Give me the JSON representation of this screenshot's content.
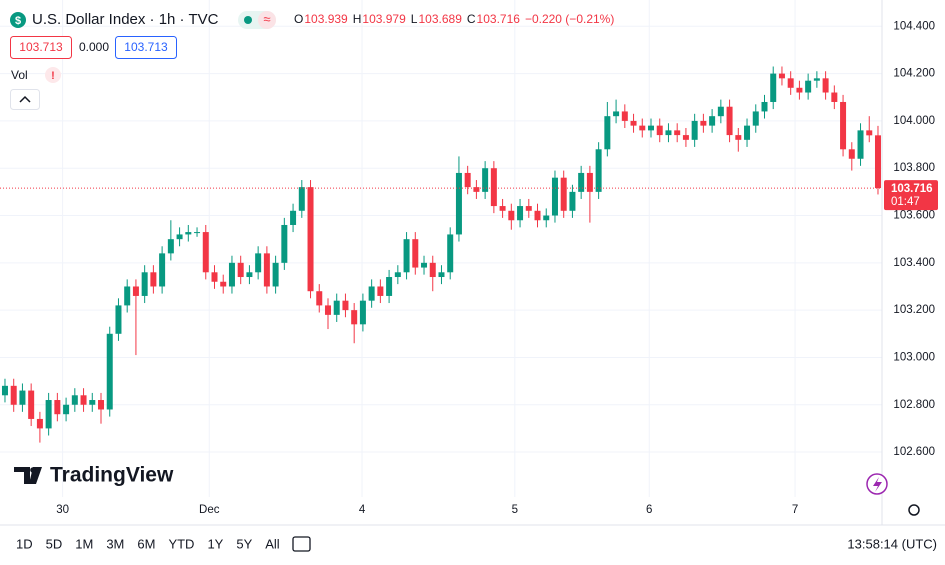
{
  "header": {
    "symbol": "U.S. Dollar Index · 1h · TVC",
    "ohlc_labels": [
      "O",
      "H",
      "L",
      "C"
    ],
    "change": "−0.220 (−0.21%)",
    "bid": "103.713",
    "spread": "0.000",
    "ask": "103.713",
    "volume_label": "Vol",
    "countdown": "01:47"
  },
  "chart_data": {
    "type": "candlestick",
    "up_color": "#089981",
    "down_color": "#f23645",
    "open": [
      102.84,
      102.88,
      102.8,
      102.86,
      102.74,
      102.7,
      102.82,
      102.76,
      102.8,
      102.84,
      102.8,
      102.82,
      102.78,
      103.1,
      103.22,
      103.3,
      103.26,
      103.36,
      103.3,
      103.44,
      103.5,
      103.52,
      103.53,
      103.53,
      103.36,
      103.32,
      103.3,
      103.4,
      103.34,
      103.36,
      103.44,
      103.3,
      103.4,
      103.56,
      103.62,
      103.72,
      103.28,
      103.22,
      103.18,
      103.24,
      103.2,
      103.14,
      103.24,
      103.3,
      103.26,
      103.34,
      103.36,
      103.5,
      103.38,
      103.4,
      103.34,
      103.36,
      103.52,
      103.78,
      103.72,
      103.7,
      103.8,
      103.64,
      103.62,
      103.58,
      103.64,
      103.62,
      103.58,
      103.6,
      103.76,
      103.62,
      103.7,
      103.78,
      103.7,
      103.88,
      104.02,
      104.04,
      104.0,
      103.98,
      103.96,
      103.98,
      103.94,
      103.96,
      103.94,
      103.92,
      104.0,
      103.98,
      104.02,
      104.06,
      103.94,
      103.92,
      103.98,
      104.04,
      104.08,
      104.2,
      104.18,
      104.14,
      104.12,
      104.17,
      104.18,
      104.12,
      104.08,
      103.88,
      103.84,
      103.96,
      103.939
    ],
    "high": [
      102.91,
      102.91,
      102.89,
      102.89,
      102.77,
      102.85,
      102.85,
      102.83,
      102.87,
      102.87,
      102.85,
      102.85,
      103.13,
      103.25,
      103.33,
      103.33,
      103.39,
      103.39,
      103.47,
      103.58,
      103.55,
      103.56,
      103.55,
      103.56,
      103.39,
      103.35,
      103.43,
      103.43,
      103.39,
      103.47,
      103.47,
      103.43,
      103.59,
      103.65,
      103.75,
      103.75,
      103.31,
      103.25,
      103.27,
      103.27,
      103.23,
      103.27,
      103.33,
      103.33,
      103.37,
      103.39,
      103.53,
      103.53,
      103.43,
      103.43,
      103.39,
      103.55,
      103.85,
      103.81,
      103.75,
      103.83,
      103.83,
      103.67,
      103.65,
      103.67,
      103.67,
      103.65,
      103.63,
      103.79,
      103.79,
      103.73,
      103.81,
      103.81,
      103.91,
      104.08,
      104.09,
      104.07,
      104.03,
      104.01,
      104.01,
      104.01,
      103.99,
      103.99,
      103.97,
      104.03,
      104.03,
      104.05,
      104.09,
      104.09,
      103.97,
      104.01,
      104.07,
      104.11,
      104.23,
      104.23,
      104.21,
      104.17,
      104.2,
      104.21,
      104.21,
      104.15,
      104.11,
      103.91,
      103.99,
      104.02,
      103.979
    ],
    "low": [
      102.81,
      102.77,
      102.77,
      102.71,
      102.64,
      102.67,
      102.73,
      102.73,
      102.77,
      102.77,
      102.77,
      102.72,
      102.75,
      103.07,
      103.19,
      103.01,
      103.23,
      103.27,
      103.27,
      103.41,
      103.47,
      103.49,
      103.51,
      103.33,
      103.29,
      103.27,
      103.27,
      103.31,
      103.31,
      103.33,
      103.27,
      103.27,
      103.37,
      103.53,
      103.59,
      103.25,
      103.19,
      103.12,
      103.15,
      103.17,
      103.06,
      103.11,
      103.21,
      103.23,
      103.23,
      103.31,
      103.33,
      103.35,
      103.35,
      103.28,
      103.31,
      103.33,
      103.49,
      103.69,
      103.67,
      103.67,
      103.61,
      103.59,
      103.54,
      103.55,
      103.59,
      103.55,
      103.55,
      103.57,
      103.59,
      103.59,
      103.67,
      103.57,
      103.67,
      103.85,
      103.99,
      103.97,
      103.95,
      103.93,
      103.93,
      103.91,
      103.91,
      103.91,
      103.89,
      103.89,
      103.95,
      103.95,
      103.99,
      103.91,
      103.87,
      103.89,
      103.95,
      104.01,
      104.05,
      104.15,
      104.11,
      104.09,
      104.09,
      104.14,
      104.09,
      104.05,
      103.85,
      103.79,
      103.81,
      103.91,
      103.689
    ],
    "close": [
      102.88,
      102.8,
      102.86,
      102.74,
      102.7,
      102.82,
      102.76,
      102.8,
      102.84,
      102.8,
      102.82,
      102.78,
      103.1,
      103.22,
      103.3,
      103.26,
      103.36,
      103.3,
      103.44,
      103.5,
      103.52,
      103.53,
      103.53,
      103.36,
      103.32,
      103.3,
      103.4,
      103.34,
      103.36,
      103.44,
      103.3,
      103.4,
      103.56,
      103.62,
      103.72,
      103.28,
      103.22,
      103.18,
      103.24,
      103.2,
      103.14,
      103.24,
      103.3,
      103.26,
      103.34,
      103.36,
      103.5,
      103.38,
      103.4,
      103.34,
      103.36,
      103.52,
      103.78,
      103.72,
      103.7,
      103.8,
      103.64,
      103.62,
      103.58,
      103.64,
      103.62,
      103.58,
      103.6,
      103.76,
      103.62,
      103.7,
      103.78,
      103.7,
      103.88,
      104.02,
      104.04,
      104.0,
      103.98,
      103.96,
      103.98,
      103.94,
      103.96,
      103.94,
      103.92,
      104.0,
      103.98,
      104.02,
      104.06,
      103.94,
      103.92,
      103.98,
      104.04,
      104.08,
      104.2,
      104.18,
      104.14,
      104.12,
      104.17,
      104.18,
      104.12,
      104.08,
      103.88,
      103.84,
      103.96,
      103.939,
      103.716
    ],
    "xlim": [
      -0.57,
      100.46
    ],
    "xticks": [
      {
        "value": 6.6,
        "label": "30"
      },
      {
        "value": 23.4,
        "label": "Dec"
      },
      {
        "value": 40.9,
        "label": "4"
      },
      {
        "value": 58.4,
        "label": "5"
      },
      {
        "value": 73.8,
        "label": "6"
      },
      {
        "value": 90.5,
        "label": "7"
      }
    ],
    "ylim": [
      102.41,
      104.49
    ],
    "yticks": [
      {
        "value": 102.6,
        "label": "102.600"
      },
      {
        "value": 102.8,
        "label": "102.800"
      },
      {
        "value": 103.0,
        "label": "103.000"
      },
      {
        "value": 103.2,
        "label": "103.200"
      },
      {
        "value": 103.4,
        "label": "103.400"
      },
      {
        "value": 103.6,
        "label": "103.600"
      },
      {
        "value": 103.8,
        "label": "103.800"
      },
      {
        "value": 104.0,
        "label": "104.000"
      },
      {
        "value": 104.2,
        "label": "104.200"
      },
      {
        "value": 104.4,
        "label": "104.400"
      }
    ],
    "grid": true,
    "last_price_line": true
  },
  "branding": "TradingView",
  "toolbar": {
    "ranges": [
      "1D",
      "5D",
      "1M",
      "3M",
      "6M",
      "YTD",
      "1Y",
      "5Y",
      "All"
    ],
    "clock": "13:58:14 (UTC)"
  }
}
